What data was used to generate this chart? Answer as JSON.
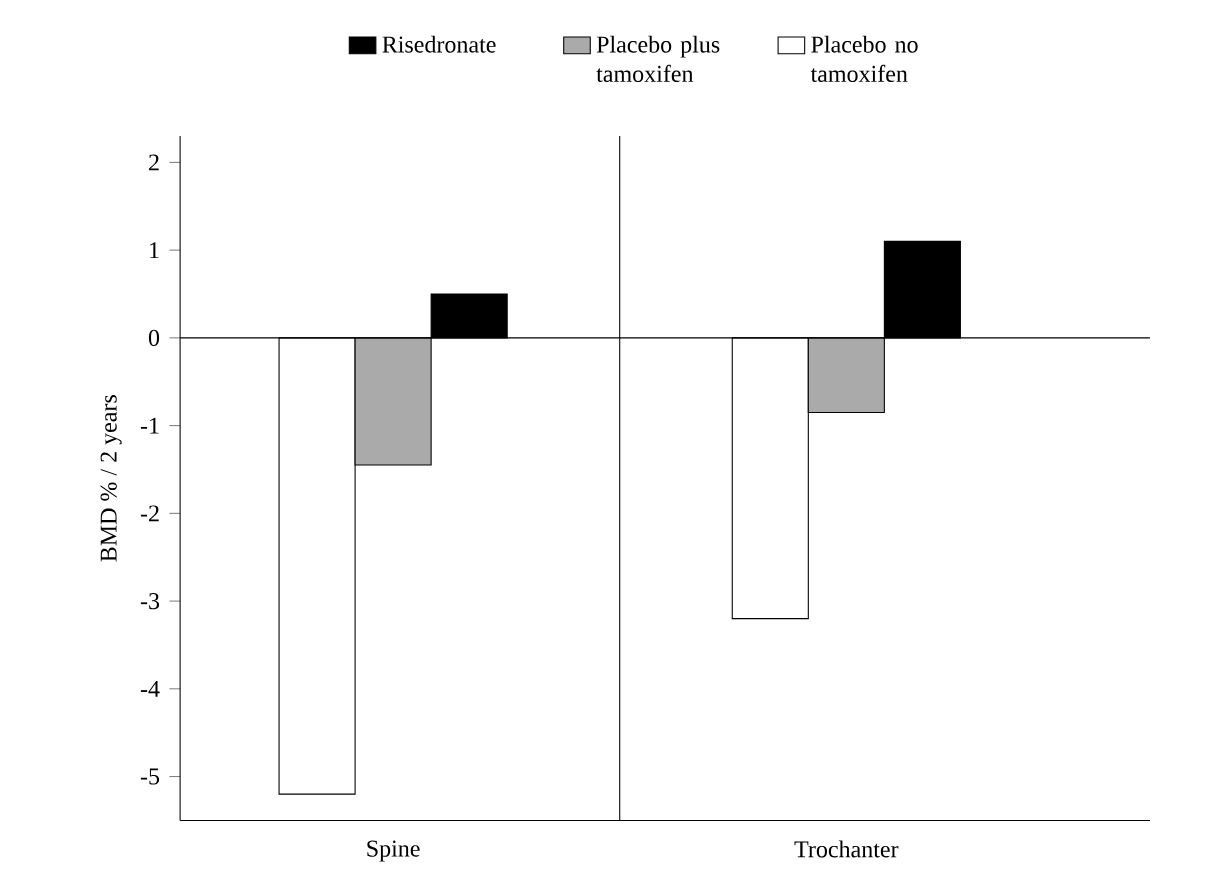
{
  "chart_data": {
    "type": "bar",
    "ylabel": "BMD % / 2 years",
    "categories": [
      "Spine",
      "Trochanter"
    ],
    "series": [
      {
        "name": "Placebo no tamoxifen",
        "color": "#ffffff",
        "values": [
          -5.2,
          -3.2
        ]
      },
      {
        "name": "Placebo plus tamoxifen",
        "color": "#aaaaaa",
        "values": [
          -1.45,
          -0.85
        ]
      },
      {
        "name": "Risedronate",
        "color": "#000000",
        "values": [
          0.5,
          1.1
        ]
      }
    ],
    "ylim": [
      -5.5,
      2.3
    ],
    "yticks": [
      -5,
      -4,
      -3,
      -2,
      -1,
      0,
      1,
      2
    ],
    "ref_lines": [
      {
        "axis": "y",
        "value": 0
      }
    ],
    "legend": "top",
    "grid": false
  }
}
